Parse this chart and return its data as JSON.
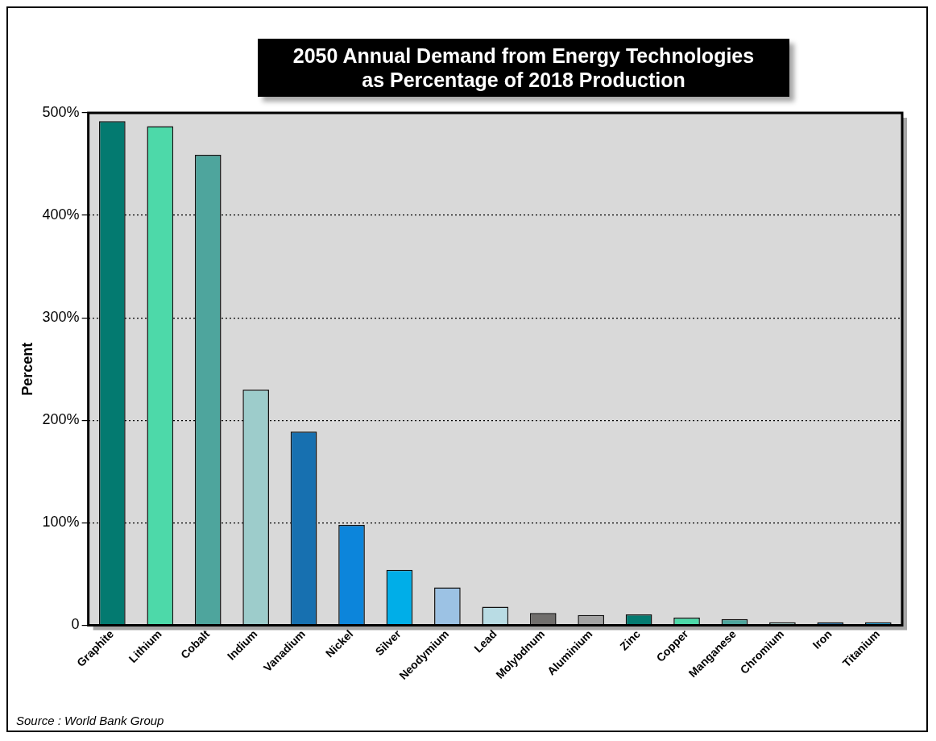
{
  "chart_data": {
    "type": "bar",
    "title": "2050 Annual Demand from Energy Technologies\nas Percentage of 2018 Production",
    "ylabel": "Percent",
    "categories": [
      "Graphite",
      "Lithium",
      "Cobalt",
      "Indium",
      "Vanadium",
      "Nickel",
      "Silver",
      "Neodymium",
      "Lead",
      "Molybdnum",
      "Aluminium",
      "Zinc",
      "Copper",
      "Manganese",
      "Chromium",
      "Iron",
      "Titanium"
    ],
    "values": [
      492,
      487,
      459,
      230,
      189,
      98,
      54,
      37,
      18,
      12,
      10,
      10.5,
      7.5,
      6,
      3,
      3,
      3
    ],
    "colors": [
      "#037a70",
      "#4dd9a9",
      "#4ea59d",
      "#9dcccb",
      "#1770b0",
      "#0c85db",
      "#00aee8",
      "#9cc2e4",
      "#b9dce4",
      "#706e6c",
      "#a3a3a3",
      "#037a70",
      "#4dd9a9",
      "#4ea59d",
      "#9dcccb",
      "#1770b0",
      "#0aa5e6"
    ],
    "ylim": [
      0,
      500
    ],
    "yticks": [
      0,
      {
        "value": 100,
        "label": "100%"
      },
      {
        "value": 200,
        "label": "200%"
      },
      {
        "value": 300,
        "label": "300%"
      },
      {
        "value": 400,
        "label": "400%"
      },
      {
        "value": 500,
        "label": "500%"
      }
    ],
    "grid": "y",
    "legend": false,
    "annotations": [
      "Source : World Bank Group"
    ]
  }
}
